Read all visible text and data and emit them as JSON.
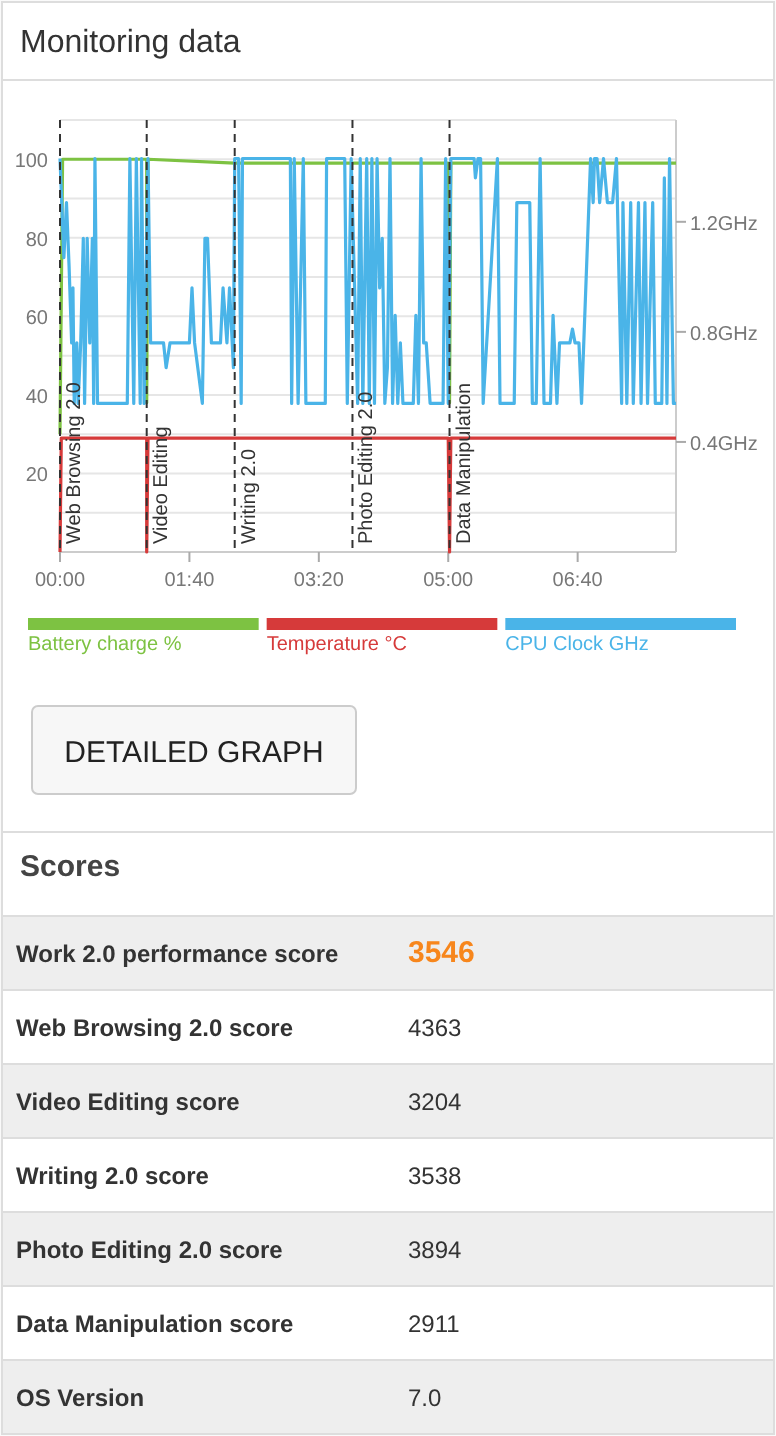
{
  "chart_data": [
    {
      "type": "line",
      "title": "Monitoring data",
      "xlim": [
        0,
        476
      ],
      "ylim": [
        0,
        110
      ],
      "y2lim": [
        0,
        1.57
      ],
      "xticks": [
        {
          "value": 0,
          "label": "00:00"
        },
        {
          "value": 100,
          "label": "01:40"
        },
        {
          "value": 200,
          "label": "03:20"
        },
        {
          "value": 300,
          "label": "05:00"
        },
        {
          "value": 400,
          "label": "06:40"
        }
      ],
      "yticks": [
        {
          "value": 0,
          "label": null
        },
        {
          "value": 10,
          "label": null
        },
        20,
        {
          "value": 30,
          "label": null
        },
        40,
        {
          "value": 50,
          "label": null
        },
        60,
        {
          "value": 70,
          "label": null
        },
        80,
        {
          "value": 90,
          "label": null
        },
        100,
        {
          "value": 110,
          "label": null
        }
      ],
      "y2ticks": [
        {
          "value": 0.4,
          "label": "0.4GHz"
        },
        {
          "value": 0.8,
          "label": "0.8GHz"
        },
        {
          "value": 1.2,
          "label": "1.2GHz"
        }
      ],
      "grid": "y",
      "legend": "bottom",
      "ref_lines": [
        {
          "axis": "x",
          "value": 0,
          "label": "Web Browsing 2.0",
          "line_style": "dashed"
        },
        {
          "axis": "x",
          "value": 67,
          "label": "Video Editing",
          "line_style": "dashed"
        },
        {
          "axis": "x",
          "value": 135,
          "label": "Writing 2.0",
          "line_style": "dashed"
        },
        {
          "axis": "x",
          "value": 226,
          "label": "Photo Editing 2.0",
          "line_style": "dashed"
        },
        {
          "axis": "x",
          "value": 301,
          "label": "Data Manipulation",
          "line_style": "dashed"
        }
      ],
      "annotations": [
        "DETAILED GRAPH"
      ],
      "series": [
        {
          "name": "Battery charge %",
          "color": "#7dc242",
          "x": [
            0,
            2,
            67,
            67,
            68,
            135,
            300,
            301,
            302,
            476
          ],
          "values": [
            30,
            100,
            100,
            38,
            100,
            99,
            99,
            38,
            99,
            99
          ]
        },
        {
          "name": "Temperature °C",
          "color": "#d63a3a",
          "x": [
            0,
            1,
            67,
            67,
            68,
            300,
            301,
            302,
            476
          ],
          "values": [
            0,
            29,
            29,
            0,
            29,
            29,
            0,
            29,
            29
          ]
        },
        {
          "name": "CPU Clock GHz",
          "color": "#4ab4e8",
          "axis": "y2",
          "x": [
            0,
            3,
            5,
            7,
            9,
            10,
            11,
            13,
            14,
            16,
            18,
            19,
            21,
            23,
            25,
            26,
            27,
            29,
            52,
            54,
            57,
            59,
            62,
            63,
            65,
            68,
            70,
            80,
            82,
            85,
            100,
            102,
            104,
            110,
            112,
            114,
            117,
            124,
            126,
            129,
            131,
            134,
            135,
            138,
            140,
            141,
            178,
            179,
            181,
            184,
            188,
            190,
            205,
            206,
            220,
            222,
            225,
            230,
            232,
            234,
            237,
            239,
            241,
            243,
            245,
            247,
            249,
            251,
            253,
            255,
            257,
            259,
            261,
            263,
            265,
            273,
            275,
            277,
            279,
            281,
            283,
            286,
            296,
            298,
            300,
            302,
            320,
            321,
            323,
            325,
            327,
            338,
            340,
            351,
            353,
            363,
            365,
            368,
            371,
            374,
            379,
            381,
            384,
            386,
            394,
            396,
            398,
            401,
            403,
            410,
            412,
            413,
            415,
            417,
            420,
            423,
            427,
            430,
            434,
            435,
            438,
            441,
            443,
            447,
            449,
            452,
            454,
            458,
            460,
            465,
            467,
            469,
            471,
            474,
            476
          ],
          "values": [
            1.43,
            1.07,
            1.27,
            1.04,
            0.76,
            0.96,
            0.54,
            0.76,
            0.54,
            0.76,
            1.14,
            0.54,
            1.14,
            0.76,
            1.14,
            0.54,
            1.43,
            0.54,
            0.54,
            1.43,
            0.54,
            1.43,
            0.54,
            1.43,
            0.54,
            1.43,
            0.76,
            0.76,
            0.67,
            0.76,
            0.76,
            0.96,
            0.76,
            0.54,
            1.14,
            1.14,
            0.76,
            0.76,
            0.96,
            0.76,
            0.96,
            0.67,
            1.43,
            1.43,
            0.54,
            1.43,
            1.43,
            0.54,
            1.43,
            0.54,
            1.43,
            0.54,
            0.54,
            1.43,
            1.43,
            0.54,
            1.43,
            0.54,
            1.43,
            0.54,
            1.43,
            0.54,
            1.43,
            0.54,
            1.43,
            0.96,
            1.14,
            0.54,
            0.67,
            1.43,
            0.54,
            0.86,
            0.54,
            0.76,
            0.54,
            0.54,
            0.86,
            0.54,
            1.43,
            0.76,
            0.76,
            0.54,
            0.54,
            1.43,
            0.54,
            1.43,
            1.43,
            1.36,
            1.43,
            1.43,
            0.54,
            1.43,
            0.54,
            0.54,
            1.27,
            1.27,
            0.54,
            0.54,
            1.43,
            0.54,
            0.54,
            0.86,
            0.54,
            0.76,
            0.76,
            0.81,
            0.76,
            0.76,
            0.54,
            1.43,
            1.27,
            1.43,
            1.43,
            1.27,
            1.43,
            1.27,
            1.27,
            1.43,
            0.54,
            1.27,
            0.54,
            1.27,
            0.54,
            1.27,
            0.54,
            1.27,
            0.54,
            1.27,
            0.54,
            0.54,
            1.36,
            0.54,
            1.43,
            0.54,
            0.54
          ]
        }
      ]
    },
    {
      "type": "other",
      "title": "Scores",
      "categories": [
        "Work 2.0 performance score",
        "Web Browsing 2.0 score",
        "Video Editing score",
        "Writing 2.0 score",
        "Photo Editing 2.0 score",
        "Data Manipulation score",
        "OS Version"
      ],
      "value_labels": [
        "3546",
        "4363",
        "3204",
        "3538",
        "3894",
        "2911",
        "7.0"
      ]
    }
  ]
}
